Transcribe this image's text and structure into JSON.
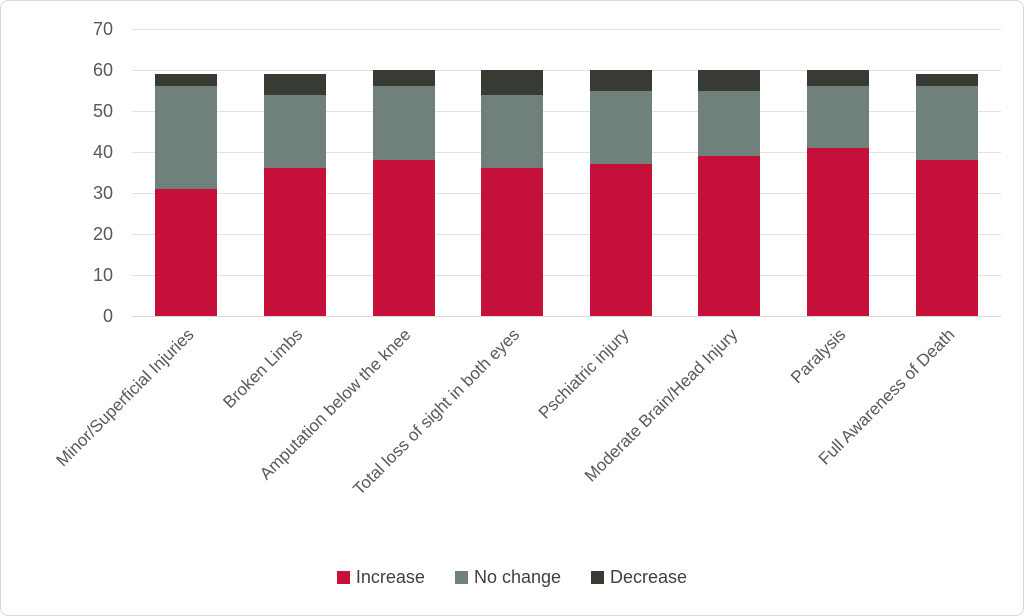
{
  "chart_data": {
    "type": "bar",
    "stacked": true,
    "title": "",
    "xlabel": "",
    "ylabel": "",
    "categories": [
      "Minor/Superficial Injuries",
      "Broken Limbs",
      "Amputation below the knee",
      "Total loss of sight in both eyes",
      "Pschiatric injury",
      "Moderate Brain/Head Injury",
      "Paralysis",
      "Full Awareness of Death"
    ],
    "series": [
      {
        "name": "Increase",
        "color": "#c5113a",
        "values": [
          31,
          36,
          38,
          36,
          37,
          39,
          41,
          38
        ]
      },
      {
        "name": "No change",
        "color": "#70807b",
        "values": [
          25,
          18,
          18,
          18,
          18,
          16,
          15,
          18
        ]
      },
      {
        "name": "Decrease",
        "color": "#373b33",
        "values": [
          3,
          5,
          4,
          6,
          5,
          5,
          4,
          3
        ]
      }
    ],
    "ylim": [
      0,
      70
    ],
    "yticks": [
      0,
      10,
      20,
      30,
      40,
      50,
      60,
      70
    ],
    "grid": true,
    "legend_position": "bottom"
  },
  "colors": {
    "increase": "#c5113a",
    "no_change": "#70807b",
    "decrease": "#373b33",
    "axis_text": "#595959",
    "legend_text": "#404040",
    "gridline": "#e2e2e2",
    "baseline": "#d9d9d9",
    "frame_border": "#d9d9d9",
    "background": "#ffffff"
  }
}
